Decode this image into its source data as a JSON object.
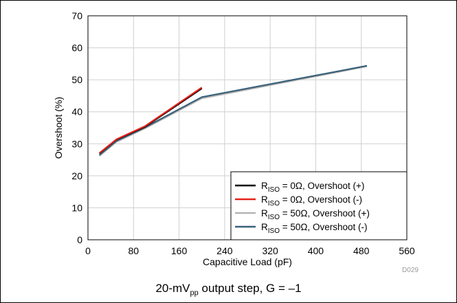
{
  "chart_data": {
    "type": "line",
    "xlabel": "Capacitive Load (pF)",
    "ylabel": "Overshoot (%)",
    "xlim": [
      0,
      560
    ],
    "ylim": [
      0,
      70
    ],
    "xticks": [
      "0",
      "80",
      "160",
      "240",
      "320",
      "400",
      "480",
      "560"
    ],
    "yticks": [
      "0",
      "10",
      "20",
      "30",
      "40",
      "50",
      "60",
      "70"
    ],
    "grid": true,
    "legend_position": "bottom-right",
    "figure_id": "D029",
    "caption": {
      "main": "20-mV",
      "sub": "pp",
      "rest": " output step, G = –1"
    },
    "series": [
      {
        "name": "R_ISO = 0Ω, Overshoot (+)",
        "label_r": "R",
        "label_sub": "ISO",
        "label_rest": " = 0Ω, Overshoot (+)",
        "color": "#000000",
        "x": [
          20,
          50,
          100,
          200
        ],
        "y": [
          27.0,
          31.3,
          35.3,
          47.3
        ]
      },
      {
        "name": "R_ISO = 0Ω, Overshoot (-)",
        "label_r": "R",
        "label_sub": "ISO",
        "label_rest": " = 0Ω, Overshoot (-)",
        "color": "#e32119",
        "x": [
          20,
          50,
          100,
          200
        ],
        "y": [
          27.1,
          31.4,
          35.5,
          47.6
        ]
      },
      {
        "name": "R_ISO = 50Ω, Overshoot (+)",
        "label_r": "R",
        "label_sub": "ISO",
        "label_rest": " = 50Ω, Overshoot (+)",
        "color": "#b3b3b3",
        "x": [
          20,
          50,
          100,
          200,
          490
        ],
        "y": [
          26.2,
          30.6,
          34.8,
          44.2,
          54.2
        ]
      },
      {
        "name": "R_ISO = 50Ω, Overshoot (-)",
        "label_r": "R",
        "label_sub": "ISO",
        "label_rest": " = 50Ω, Overshoot (-)",
        "color": "#386079",
        "x": [
          20,
          50,
          100,
          200,
          490
        ],
        "y": [
          26.5,
          30.9,
          35.1,
          44.6,
          54.4
        ]
      }
    ]
  }
}
